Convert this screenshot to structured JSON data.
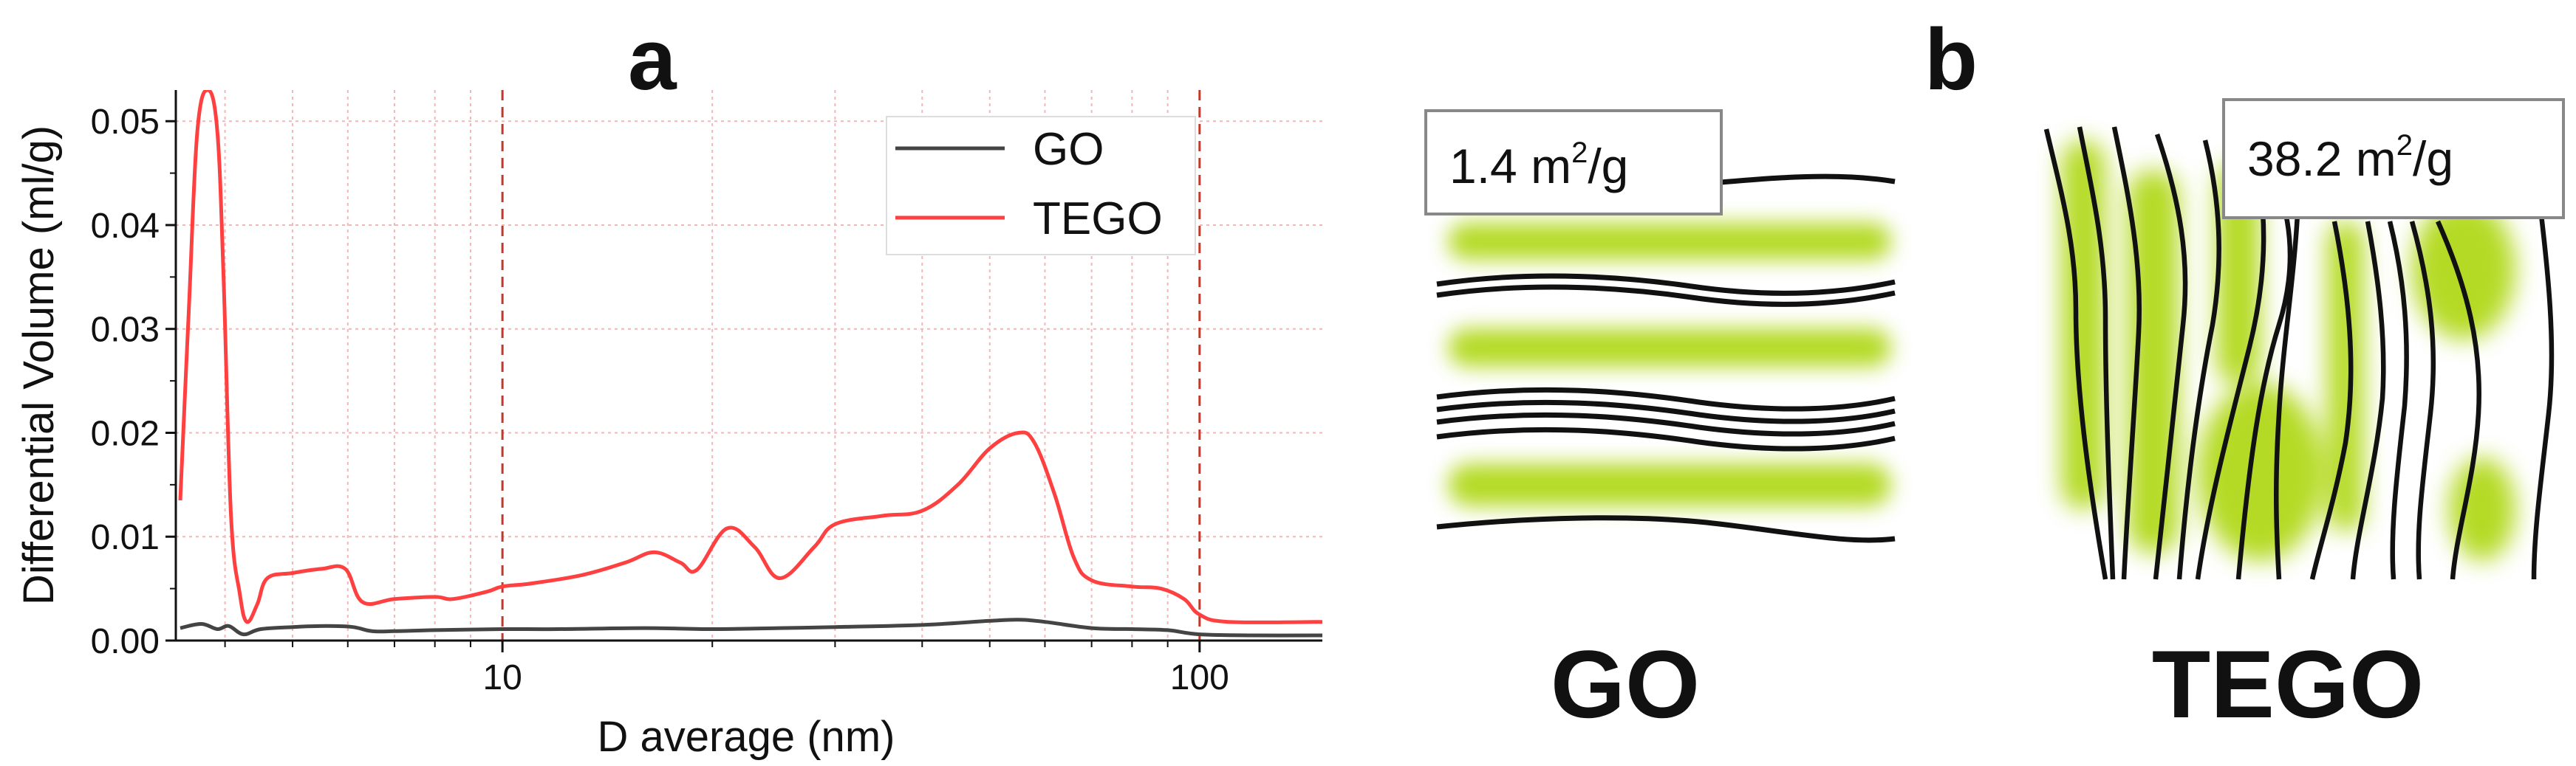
{
  "panel_labels": {
    "a": "a",
    "b": "b"
  },
  "chart_data": {
    "type": "line",
    "x_scale": "log",
    "xlabel": "D average (nm)",
    "ylabel": "Differential Volume (ml/g)",
    "xlim": [
      3.4,
      150
    ],
    "ylim": [
      0,
      0.053
    ],
    "x_ticks": [
      10,
      100
    ],
    "x_tick_labels": [
      "10",
      "100"
    ],
    "y_ticks": [
      0.0,
      0.01,
      0.02,
      0.03,
      0.04,
      0.05
    ],
    "y_tick_labels": [
      "0.00",
      "0.01",
      "0.02",
      "0.03",
      "0.04",
      "0.05"
    ],
    "x_minor_ticks": [
      4,
      5,
      6,
      7,
      8,
      9,
      20,
      30,
      40,
      50,
      60,
      70,
      80,
      90
    ],
    "grid": true,
    "legend_position": "top-right",
    "series": [
      {
        "name": "GO",
        "color": "#444444",
        "x": [
          3.45,
          3.7,
          3.9,
          4.05,
          4.25,
          4.5,
          5.0,
          5.6,
          6.1,
          6.5,
          7.0,
          8.0,
          10,
          12,
          16,
          20,
          25,
          30,
          40,
          50,
          55,
          60,
          70,
          80,
          90,
          100,
          120,
          150
        ],
        "y": [
          0.0012,
          0.0016,
          0.0011,
          0.0014,
          0.0006,
          0.0011,
          0.0013,
          0.0014,
          0.0013,
          0.0009,
          0.0009,
          0.001,
          0.0011,
          0.0011,
          0.0012,
          0.0011,
          0.0012,
          0.0013,
          0.0015,
          0.0019,
          0.002,
          0.0018,
          0.0012,
          0.0011,
          0.001,
          0.0006,
          0.0005,
          0.0005
        ]
      },
      {
        "name": "TEGO",
        "color": "#ff4040",
        "x": [
          3.45,
          3.55,
          3.65,
          3.78,
          3.9,
          3.98,
          4.08,
          4.2,
          4.3,
          4.45,
          4.6,
          5.0,
          5.5,
          5.95,
          6.3,
          7.0,
          8.0,
          8.5,
          9.5,
          10,
          11,
          13,
          15,
          16.5,
          18,
          19,
          21,
          23,
          25,
          28,
          30,
          35,
          40,
          45,
          50,
          55,
          58,
          62,
          66,
          70,
          80,
          88,
          95,
          100,
          110,
          150
        ],
        "y": [
          0.0135,
          0.032,
          0.049,
          0.053,
          0.049,
          0.035,
          0.012,
          0.0045,
          0.0018,
          0.0035,
          0.006,
          0.0065,
          0.0069,
          0.0069,
          0.0037,
          0.004,
          0.0042,
          0.004,
          0.0047,
          0.0052,
          0.0055,
          0.0063,
          0.0075,
          0.0085,
          0.0075,
          0.0068,
          0.0108,
          0.009,
          0.006,
          0.009,
          0.0112,
          0.012,
          0.0125,
          0.015,
          0.0185,
          0.02,
          0.019,
          0.014,
          0.008,
          0.0058,
          0.0052,
          0.005,
          0.004,
          0.0025,
          0.0018,
          0.0018
        ]
      }
    ]
  },
  "illustration": {
    "go_label": "GO",
    "tego_label": "TEGO",
    "go_area_prefix": "1.4 m",
    "go_area_exp": "2",
    "go_area_suffix": "/g",
    "tego_area_prefix": "38.2 m",
    "tego_area_exp": "2",
    "tego_area_suffix": "/g",
    "sheet_color": "#111111",
    "fill_color": "#a8d400"
  }
}
